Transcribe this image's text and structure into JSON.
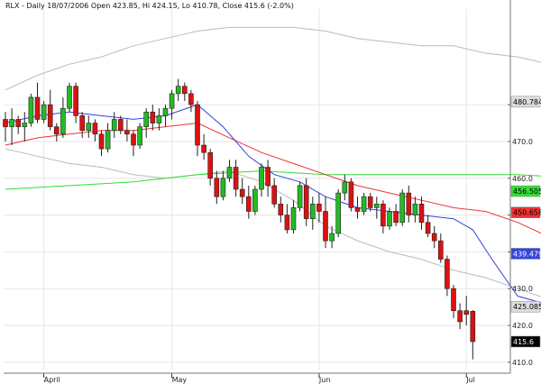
{
  "header": {
    "label": "RLX - Daily 18/07/2006 Open 423.85, Hi 424.15, Lo 410.78, Close 415.6 (-2.0%)"
  },
  "colors": {
    "up": "#22bb22",
    "down": "#dd1111",
    "ma_short": "#3344dd",
    "ma_mid": "#ee3333",
    "ma_long": "#33dd33",
    "band": "#bbbbbb",
    "grid": "#e6e6e6",
    "last_price_box": "#000000"
  },
  "chart_data": {
    "type": "candlestick",
    "ylim": [
      408,
      506
    ],
    "y_ticks": [
      410,
      420,
      430,
      440,
      450,
      460,
      470,
      480
    ],
    "x_months": [
      {
        "label": "April",
        "index": 6
      },
      {
        "label": "May",
        "index": 26
      },
      {
        "label": "Jun",
        "index": 49
      },
      {
        "label": "Jul",
        "index": 72
      }
    ],
    "price_labels": [
      {
        "value": "480.784",
        "y": 480.8,
        "bg": "#dddddd",
        "fg": "#000000"
      },
      {
        "value": "456.505",
        "y": 456.5,
        "bg": "#33dd33",
        "fg": "#000000"
      },
      {
        "value": "450.658",
        "y": 450.7,
        "bg": "#ee3333",
        "fg": "#000000"
      },
      {
        "value": "439.479",
        "y": 439.5,
        "bg": "#3344dd",
        "fg": "#ffffff"
      },
      {
        "value": "425.085",
        "y": 425.1,
        "bg": "#dddddd",
        "fg": "#000000"
      },
      {
        "value": "415.6",
        "y": 415.6,
        "bg": "#000000",
        "fg": "#ffffff"
      }
    ],
    "candles": [
      [
        476,
        478,
        470,
        474
      ],
      [
        474,
        479,
        469,
        476
      ],
      [
        476,
        477,
        472,
        474
      ],
      [
        474,
        478,
        470,
        475
      ],
      [
        475,
        483,
        474,
        482
      ],
      [
        482,
        486,
        475,
        476
      ],
      [
        476,
        481,
        475,
        480
      ],
      [
        480,
        484,
        473,
        474
      ],
      [
        474,
        475,
        470,
        472
      ],
      [
        472,
        482,
        471,
        479
      ],
      [
        479,
        486,
        478,
        485
      ],
      [
        485,
        486,
        475,
        477
      ],
      [
        477,
        478,
        471,
        473
      ],
      [
        473,
        477,
        471,
        475
      ],
      [
        475,
        476,
        470,
        472
      ],
      [
        472,
        473,
        466,
        468
      ],
      [
        468,
        475,
        467,
        473
      ],
      [
        473,
        478,
        471,
        476
      ],
      [
        476,
        477,
        472,
        473
      ],
      [
        473,
        476,
        470,
        472
      ],
      [
        472,
        473,
        466,
        469
      ],
      [
        469,
        475,
        468,
        474
      ],
      [
        474,
        479,
        471,
        478
      ],
      [
        478,
        480,
        473,
        475
      ],
      [
        475,
        479,
        473,
        477
      ],
      [
        477,
        480,
        474,
        479
      ],
      [
        479,
        484,
        476,
        483
      ],
      [
        483,
        487,
        481,
        485
      ],
      [
        485,
        486,
        481,
        483
      ],
      [
        483,
        484,
        478,
        480
      ],
      [
        480,
        481,
        466,
        469
      ],
      [
        469,
        472,
        465,
        467
      ],
      [
        467,
        468,
        458,
        460
      ],
      [
        460,
        462,
        453,
        455
      ],
      [
        455,
        462,
        454,
        460
      ],
      [
        460,
        465,
        459,
        463
      ],
      [
        463,
        465,
        455,
        457
      ],
      [
        457,
        460,
        453,
        455
      ],
      [
        455,
        458,
        449,
        451
      ],
      [
        451,
        458,
        450,
        457
      ],
      [
        457,
        464,
        455,
        463
      ],
      [
        463,
        465,
        455,
        458
      ],
      [
        458,
        460,
        452,
        453
      ],
      [
        453,
        455,
        448,
        450
      ],
      [
        450,
        453,
        445,
        446
      ],
      [
        446,
        454,
        445,
        452
      ],
      [
        452,
        459,
        451,
        458
      ],
      [
        458,
        460,
        447,
        449
      ],
      [
        449,
        455,
        446,
        453
      ],
      [
        453,
        456,
        448,
        451
      ],
      [
        451,
        455,
        441,
        443
      ],
      [
        443,
        447,
        441,
        445
      ],
      [
        445,
        457,
        444,
        456
      ],
      [
        456,
        461,
        454,
        459
      ],
      [
        459,
        460,
        451,
        452
      ],
      [
        452,
        455,
        449,
        451
      ],
      [
        451,
        456,
        450,
        455
      ],
      [
        455,
        456,
        451,
        452
      ],
      [
        452,
        455,
        449,
        453
      ],
      [
        453,
        454,
        445,
        447
      ],
      [
        447,
        452,
        446,
        451
      ],
      [
        451,
        453,
        447,
        448
      ],
      [
        448,
        457,
        447,
        456
      ],
      [
        456,
        458,
        448,
        450
      ],
      [
        450,
        455,
        448,
        453
      ],
      [
        453,
        455,
        446,
        448
      ],
      [
        448,
        450,
        444,
        445
      ],
      [
        445,
        447,
        441,
        443
      ],
      [
        443,
        445,
        437,
        438
      ],
      [
        438,
        439,
        428,
        430
      ],
      [
        430,
        431,
        422,
        424
      ],
      [
        424,
        426,
        419,
        421
      ],
      [
        424,
        428,
        420,
        423
      ],
      [
        423.85,
        424.15,
        410.78,
        415.6
      ]
    ],
    "sma_short": [
      [
        0,
        475
      ],
      [
        5,
        477
      ],
      [
        10,
        478
      ],
      [
        15,
        477
      ],
      [
        20,
        476
      ],
      [
        25,
        477
      ],
      [
        30,
        480
      ],
      [
        34,
        474
      ],
      [
        38,
        466
      ],
      [
        42,
        461
      ],
      [
        46,
        459
      ],
      [
        50,
        455
      ],
      [
        55,
        452
      ],
      [
        60,
        451
      ],
      [
        65,
        450
      ],
      [
        70,
        449
      ],
      [
        73,
        446
      ],
      [
        76,
        438
      ],
      [
        80,
        428
      ],
      [
        84,
        426
      ],
      [
        88,
        421
      ],
      [
        92,
        415
      ],
      [
        95,
        409
      ]
    ],
    "sma_mid": [
      [
        0,
        469
      ],
      [
        5,
        471
      ],
      [
        10,
        472
      ],
      [
        15,
        473
      ],
      [
        20,
        473
      ],
      [
        25,
        474
      ],
      [
        30,
        475
      ],
      [
        35,
        471
      ],
      [
        40,
        467
      ],
      [
        45,
        464
      ],
      [
        50,
        461
      ],
      [
        55,
        458
      ],
      [
        60,
        456
      ],
      [
        65,
        454
      ],
      [
        70,
        452
      ],
      [
        75,
        451
      ],
      [
        80,
        448
      ],
      [
        85,
        444
      ],
      [
        90,
        440
      ],
      [
        95,
        435
      ]
    ],
    "sma_long": [
      [
        0,
        457
      ],
      [
        10,
        458
      ],
      [
        20,
        459
      ],
      [
        30,
        461
      ],
      [
        40,
        462
      ],
      [
        50,
        461
      ],
      [
        60,
        461
      ],
      [
        70,
        461
      ],
      [
        80,
        461
      ],
      [
        90,
        460
      ],
      [
        95,
        460
      ]
    ],
    "band_upper": [
      [
        0,
        484
      ],
      [
        5,
        488
      ],
      [
        10,
        491
      ],
      [
        15,
        493
      ],
      [
        20,
        496
      ],
      [
        25,
        498
      ],
      [
        30,
        500
      ],
      [
        35,
        501
      ],
      [
        40,
        501
      ],
      [
        45,
        501
      ],
      [
        50,
        500
      ],
      [
        55,
        498
      ],
      [
        60,
        497
      ],
      [
        65,
        496
      ],
      [
        70,
        496
      ],
      [
        75,
        494
      ],
      [
        80,
        493
      ],
      [
        85,
        491
      ],
      [
        90,
        489
      ],
      [
        95,
        487
      ]
    ],
    "band_lower": [
      [
        0,
        468
      ],
      [
        5,
        466
      ],
      [
        10,
        464
      ],
      [
        15,
        463
      ],
      [
        20,
        461
      ],
      [
        25,
        460
      ],
      [
        30,
        461
      ],
      [
        35,
        462
      ],
      [
        40,
        459
      ],
      [
        45,
        454
      ],
      [
        50,
        447
      ],
      [
        55,
        443
      ],
      [
        60,
        440
      ],
      [
        65,
        438
      ],
      [
        70,
        435
      ],
      [
        75,
        433
      ],
      [
        80,
        430
      ],
      [
        85,
        427
      ],
      [
        90,
        424
      ],
      [
        95,
        421
      ]
    ]
  }
}
